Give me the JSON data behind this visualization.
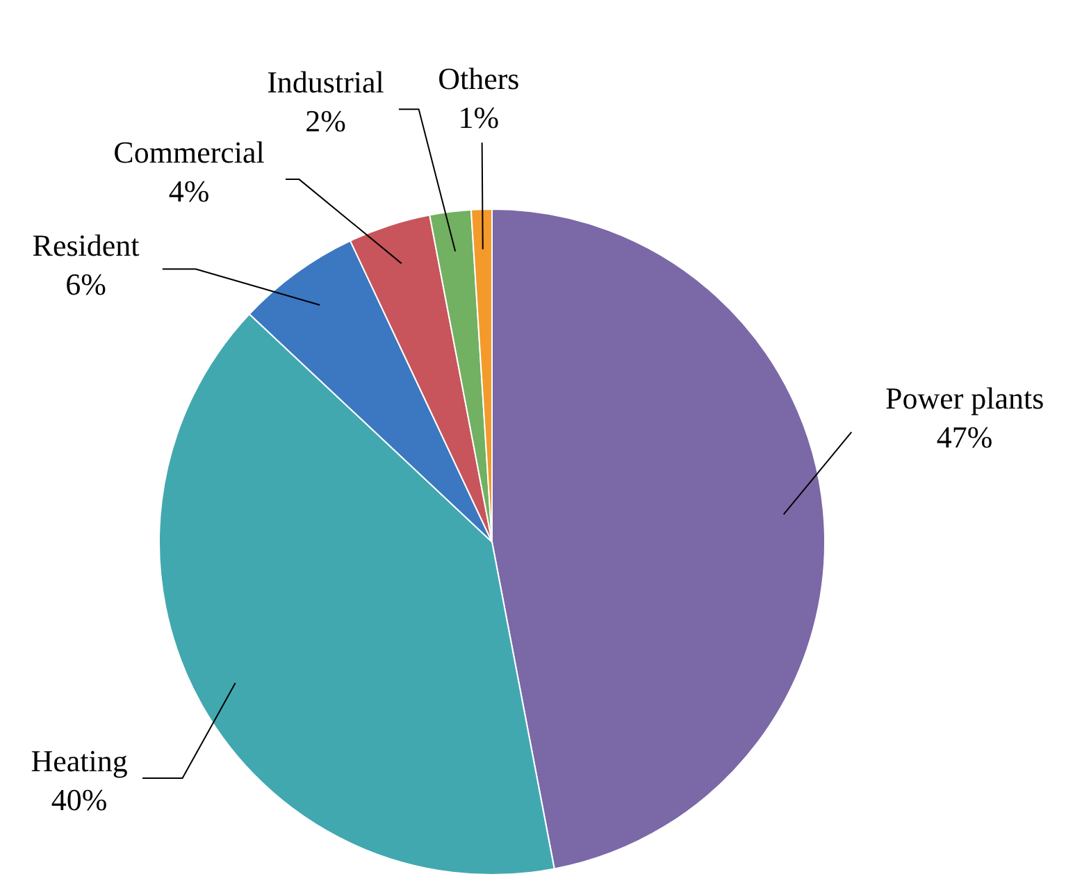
{
  "chart_data": {
    "type": "pie",
    "categories": [
      "Power plants",
      "Heating",
      "Resident",
      "Commercial",
      "Industrial",
      "Others"
    ],
    "values": [
      47,
      40,
      6,
      4,
      2,
      1
    ],
    "value_labels": [
      "47%",
      "40%",
      "6%",
      "4%",
      "2%",
      "1%"
    ],
    "colors": [
      "#7b68a6",
      "#41a8b0",
      "#3b78c1",
      "#c8555b",
      "#72b062",
      "#f39a2b"
    ],
    "legend": false
  }
}
